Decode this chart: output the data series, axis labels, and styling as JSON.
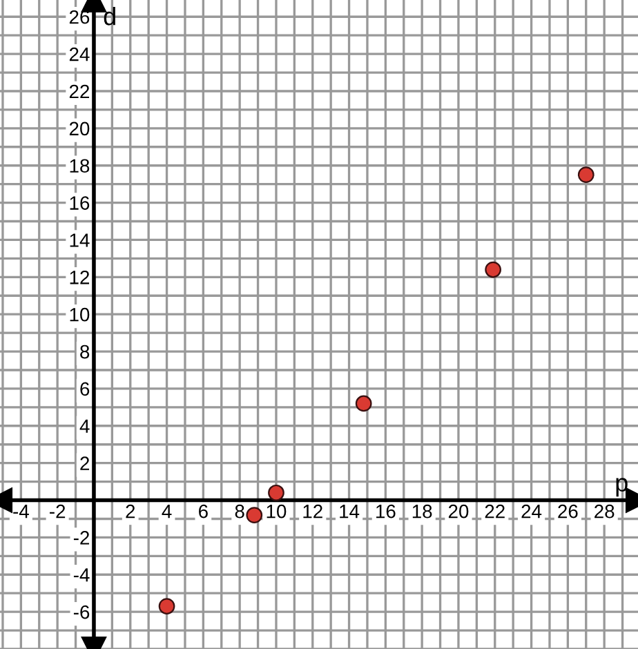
{
  "chart_data": {
    "type": "scatter",
    "xlabel": "p",
    "ylabel": "d",
    "x": [
      4.0,
      8.8,
      10.0,
      14.8,
      21.9,
      27.0
    ],
    "series": [
      {
        "color": "#d93a32",
        "values": [
          -5.7,
          -0.8,
          0.4,
          5.2,
          12.4,
          17.5
        ]
      }
    ],
    "marker": "circle",
    "grid": true,
    "xlim": [
      -5.15,
      29.85
    ],
    "ylim": [
      -8.0,
      26.9
    ],
    "xticks": [
      {
        "value": -5,
        "label": null
      },
      -4,
      {
        "value": -3,
        "label": null
      },
      -2,
      {
        "value": -1,
        "label": null
      },
      {
        "value": 0,
        "label": null
      },
      {
        "value": 1,
        "label": null
      },
      2,
      {
        "value": 3,
        "label": null
      },
      4,
      {
        "value": 5,
        "label": null
      },
      6,
      {
        "value": 7,
        "label": null
      },
      8,
      {
        "value": 9,
        "label": null
      },
      10,
      {
        "value": 11,
        "label": null
      },
      12,
      {
        "value": 13,
        "label": null
      },
      14,
      {
        "value": 15,
        "label": null
      },
      16,
      {
        "value": 17,
        "label": null
      },
      18,
      {
        "value": 19,
        "label": null
      },
      20,
      {
        "value": 21,
        "label": null
      },
      22,
      {
        "value": 23,
        "label": null
      },
      24,
      {
        "value": 25,
        "label": null
      },
      26,
      {
        "value": 27,
        "label": null
      },
      28,
      {
        "value": 29,
        "label": null
      }
    ],
    "yticks": [
      {
        "value": -8,
        "label": null
      },
      {
        "value": -7,
        "label": null
      },
      -6,
      {
        "value": -5,
        "label": null
      },
      -4,
      {
        "value": -3,
        "label": null
      },
      -2,
      {
        "value": -1,
        "label": null
      },
      {
        "value": 0,
        "label": null
      },
      {
        "value": 1,
        "label": null
      },
      2,
      {
        "value": 3,
        "label": null
      },
      4,
      {
        "value": 5,
        "label": null
      },
      6,
      {
        "value": 7,
        "label": null
      },
      8,
      {
        "value": 9,
        "label": null
      },
      10,
      {
        "value": 11,
        "label": null
      },
      12,
      {
        "value": 13,
        "label": null
      },
      14,
      {
        "value": 15,
        "label": null
      },
      16,
      {
        "value": 17,
        "label": null
      },
      18,
      {
        "value": 19,
        "label": null
      },
      20,
      {
        "value": 21,
        "label": null
      },
      22,
      {
        "value": 23,
        "label": null
      },
      24,
      {
        "value": 25,
        "label": null
      },
      26
    ]
  }
}
